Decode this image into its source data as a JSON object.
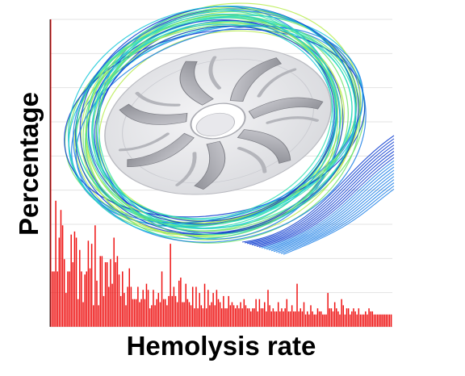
{
  "chart_data": {
    "type": "bar",
    "title": "",
    "xlabel": "Hemolysis rate",
    "ylabel": "Percentage",
    "xlim": [
      0,
      100
    ],
    "ylim": [
      0,
      100
    ],
    "grid": true,
    "legend": "none",
    "bar_color": "#ee1111",
    "values": [
      100,
      18,
      18,
      41,
      18,
      29,
      38,
      33,
      22,
      11,
      18,
      18,
      30,
      21,
      31,
      29,
      9,
      25,
      18,
      8,
      17,
      18,
      28,
      19,
      27,
      7,
      33,
      15,
      7,
      23,
      23,
      10,
      21,
      21,
      13,
      22,
      14,
      29,
      21,
      23,
      17,
      10,
      18,
      11,
      7,
      13,
      19,
      13,
      9,
      9,
      9,
      13,
      8,
      9,
      12,
      9,
      14,
      12,
      6,
      7,
      12,
      7,
      9,
      11,
      8,
      18,
      9,
      9,
      7,
      10,
      27,
      10,
      13,
      10,
      8,
      15,
      16,
      8,
      8,
      14,
      9,
      8,
      7,
      13,
      6,
      13,
      6,
      11,
      7,
      6,
      14,
      6,
      12,
      7,
      8,
      11,
      7,
      12,
      9,
      8,
      6,
      10,
      6,
      6,
      10,
      7,
      8,
      7,
      6,
      7,
      6,
      8,
      6,
      9,
      7,
      6,
      6,
      5,
      6,
      6,
      9,
      5,
      9,
      6,
      6,
      8,
      5,
      12,
      7,
      5,
      6,
      5,
      5,
      8,
      5,
      6,
      5,
      6,
      9,
      5,
      5,
      7,
      5,
      5,
      14,
      5,
      6,
      5,
      8,
      4,
      5,
      4,
      7,
      5,
      4,
      4,
      6,
      5,
      5,
      4,
      4,
      4,
      11,
      6,
      6,
      5,
      8,
      6,
      5,
      4,
      9,
      7,
      4,
      6,
      6,
      4,
      5,
      6,
      5,
      4,
      6,
      4,
      4,
      4,
      5,
      4,
      6,
      5,
      5,
      4,
      4,
      4,
      4,
      4,
      4,
      4,
      4,
      4,
      4,
      4
    ]
  },
  "image": {
    "description": "Impeller with streamlines",
    "colors": [
      "#0a3bd0",
      "#1b7fe6",
      "#19c8d8",
      "#35e0b0",
      "#6fe36a",
      "#b8ec4f"
    ]
  }
}
